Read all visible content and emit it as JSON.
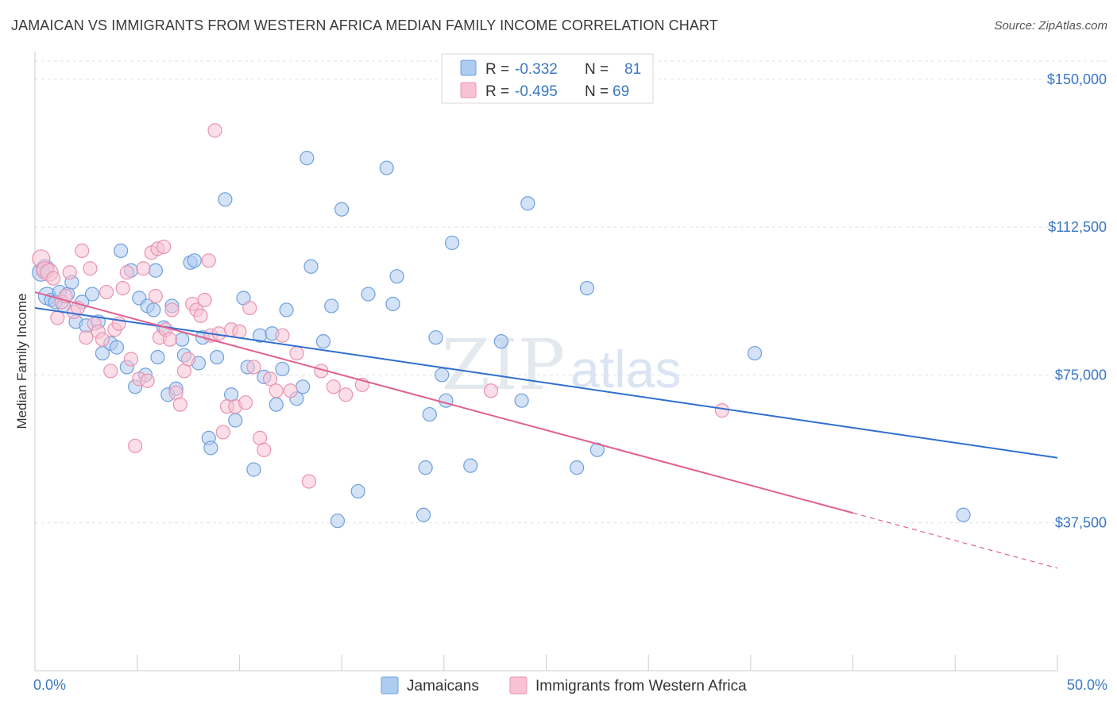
{
  "title": "JAMAICAN VS IMMIGRANTS FROM WESTERN AFRICA MEDIAN FAMILY INCOME CORRELATION CHART",
  "source": "Source: ZipAtlas.com",
  "watermark": {
    "zip": "ZIP",
    "atlas": "atlas"
  },
  "colors": {
    "jamaicans_fill": "#aecbf0",
    "jamaicans_stroke": "#6fa0dc",
    "jamaicans_line": "#2f6fd0",
    "western_africa_fill": "#f7c3d4",
    "western_africa_stroke": "#e993b1",
    "western_africa_line": "#e0608f",
    "tick_label": "#3b78c4",
    "grid": "#dde3ea"
  },
  "legend_box": {
    "rows": [
      {
        "r_label": "R =",
        "r_value": "-0.332",
        "n_label": "N =",
        "n_value": "81"
      },
      {
        "r_label": "R =",
        "r_value": "-0.495",
        "n_label": "N =",
        "n_value": "69"
      }
    ]
  },
  "bottom_legend": [
    "Jamaicans",
    "Immigrants from Western Africa"
  ],
  "chart_data": {
    "type": "scatter",
    "title": "JAMAICAN VS IMMIGRANTS FROM WESTERN AFRICA MEDIAN FAMILY INCOME CORRELATION CHART",
    "xlabel": "",
    "ylabel": "Median Family Income",
    "xlim": [
      0,
      50
    ],
    "ylim": [
      0,
      157000
    ],
    "x_tick_labels": [
      "0.0%",
      "50.0%"
    ],
    "y_ticks": [
      37500,
      75000,
      112500,
      150000
    ],
    "y_tick_labels": [
      "$37,500",
      "$75,000",
      "$112,500",
      "$150,000"
    ],
    "grid": true,
    "legend_position": "top-center",
    "series": [
      {
        "name": "Jamaicans",
        "r": -0.332,
        "n": 81,
        "trend": {
          "x": [
            0,
            50
          ],
          "y": [
            92000,
            54000
          ],
          "dashed_from": null
        },
        "points": [
          [
            0.3,
            101000
          ],
          [
            0.5,
            102000
          ],
          [
            0.6,
            95000
          ],
          [
            0.8,
            94000
          ],
          [
            1.0,
            93500
          ],
          [
            1.2,
            96000
          ],
          [
            1.4,
            92500
          ],
          [
            1.6,
            95500
          ],
          [
            1.8,
            98500
          ],
          [
            2.0,
            88500
          ],
          [
            2.3,
            93500
          ],
          [
            2.5,
            87500
          ],
          [
            2.8,
            95500
          ],
          [
            3.1,
            88500
          ],
          [
            3.3,
            80500
          ],
          [
            3.7,
            83000
          ],
          [
            4.0,
            82000
          ],
          [
            4.2,
            106500
          ],
          [
            4.5,
            77000
          ],
          [
            4.7,
            101500
          ],
          [
            4.9,
            72000
          ],
          [
            5.1,
            94500
          ],
          [
            5.4,
            75000
          ],
          [
            5.5,
            92500
          ],
          [
            5.8,
            91500
          ],
          [
            5.9,
            101500
          ],
          [
            6.0,
            79500
          ],
          [
            6.3,
            87000
          ],
          [
            6.5,
            70000
          ],
          [
            6.7,
            92500
          ],
          [
            6.9,
            71500
          ],
          [
            7.2,
            84000
          ],
          [
            7.3,
            80000
          ],
          [
            7.6,
            103500
          ],
          [
            7.8,
            104000
          ],
          [
            8.0,
            78000
          ],
          [
            8.2,
            84500
          ],
          [
            8.5,
            59000
          ],
          [
            8.6,
            56500
          ],
          [
            8.9,
            79500
          ],
          [
            9.3,
            119500
          ],
          [
            9.6,
            70000
          ],
          [
            9.8,
            63500
          ],
          [
            10.2,
            94500
          ],
          [
            10.4,
            77000
          ],
          [
            10.7,
            51000
          ],
          [
            11.0,
            85000
          ],
          [
            11.2,
            74500
          ],
          [
            11.6,
            85500
          ],
          [
            11.8,
            67500
          ],
          [
            12.1,
            76500
          ],
          [
            12.3,
            91500
          ],
          [
            12.8,
            69000
          ],
          [
            13.1,
            72000
          ],
          [
            13.3,
            130000
          ],
          [
            13.5,
            102500
          ],
          [
            14.1,
            83500
          ],
          [
            14.5,
            92500
          ],
          [
            14.8,
            38000
          ],
          [
            15.0,
            117000
          ],
          [
            15.8,
            45500
          ],
          [
            16.3,
            95500
          ],
          [
            17.2,
            127500
          ],
          [
            17.5,
            93000
          ],
          [
            17.7,
            100000
          ],
          [
            19.0,
            39500
          ],
          [
            19.1,
            51500
          ],
          [
            19.3,
            65000
          ],
          [
            19.6,
            84500
          ],
          [
            19.9,
            75000
          ],
          [
            20.1,
            68500
          ],
          [
            20.4,
            108500
          ],
          [
            21.3,
            52000
          ],
          [
            22.8,
            83500
          ],
          [
            23.8,
            68500
          ],
          [
            24.1,
            118500
          ],
          [
            26.5,
            51500
          ],
          [
            27.0,
            97000
          ],
          [
            27.5,
            56000
          ],
          [
            35.2,
            80500
          ],
          [
            45.4,
            39500
          ]
        ]
      },
      {
        "name": "Immigrants from Western Africa",
        "r": -0.495,
        "n": 69,
        "trend": {
          "x": [
            0,
            50
          ],
          "y": [
            96000,
            26000
          ],
          "dashed_from": 40
        },
        "points": [
          [
            0.3,
            104500
          ],
          [
            0.5,
            101500
          ],
          [
            0.7,
            101000
          ],
          [
            0.9,
            99500
          ],
          [
            1.1,
            89500
          ],
          [
            1.3,
            93500
          ],
          [
            1.5,
            95000
          ],
          [
            1.7,
            101000
          ],
          [
            1.9,
            91000
          ],
          [
            2.1,
            92000
          ],
          [
            2.3,
            106500
          ],
          [
            2.5,
            84500
          ],
          [
            2.7,
            102000
          ],
          [
            2.9,
            88000
          ],
          [
            3.1,
            86000
          ],
          [
            3.3,
            84000
          ],
          [
            3.5,
            96000
          ],
          [
            3.7,
            76000
          ],
          [
            3.9,
            86500
          ],
          [
            4.1,
            88000
          ],
          [
            4.3,
            97000
          ],
          [
            4.5,
            101000
          ],
          [
            4.7,
            79000
          ],
          [
            4.9,
            57000
          ],
          [
            5.1,
            74000
          ],
          [
            5.3,
            102000
          ],
          [
            5.5,
            73500
          ],
          [
            5.7,
            106000
          ],
          [
            5.9,
            95000
          ],
          [
            6.0,
            107000
          ],
          [
            6.1,
            84500
          ],
          [
            6.3,
            107500
          ],
          [
            6.4,
            86500
          ],
          [
            6.6,
            84000
          ],
          [
            6.7,
            91500
          ],
          [
            6.9,
            70500
          ],
          [
            7.1,
            67500
          ],
          [
            7.3,
            76000
          ],
          [
            7.5,
            79000
          ],
          [
            7.7,
            93000
          ],
          [
            7.9,
            91500
          ],
          [
            8.1,
            90000
          ],
          [
            8.3,
            94000
          ],
          [
            8.5,
            104000
          ],
          [
            8.6,
            85000
          ],
          [
            8.8,
            137000
          ],
          [
            9.0,
            85500
          ],
          [
            9.2,
            60500
          ],
          [
            9.4,
            67000
          ],
          [
            9.6,
            86500
          ],
          [
            9.8,
            67000
          ],
          [
            10.0,
            86000
          ],
          [
            10.3,
            68000
          ],
          [
            10.5,
            92000
          ],
          [
            10.7,
            77000
          ],
          [
            11.0,
            59000
          ],
          [
            11.2,
            56000
          ],
          [
            11.5,
            74000
          ],
          [
            11.8,
            71000
          ],
          [
            12.1,
            85000
          ],
          [
            12.5,
            71000
          ],
          [
            12.8,
            80500
          ],
          [
            13.4,
            48000
          ],
          [
            14.0,
            76000
          ],
          [
            14.6,
            72000
          ],
          [
            15.2,
            70000
          ],
          [
            16.0,
            72500
          ],
          [
            22.3,
            71000
          ],
          [
            33.6,
            66000
          ]
        ]
      }
    ]
  }
}
